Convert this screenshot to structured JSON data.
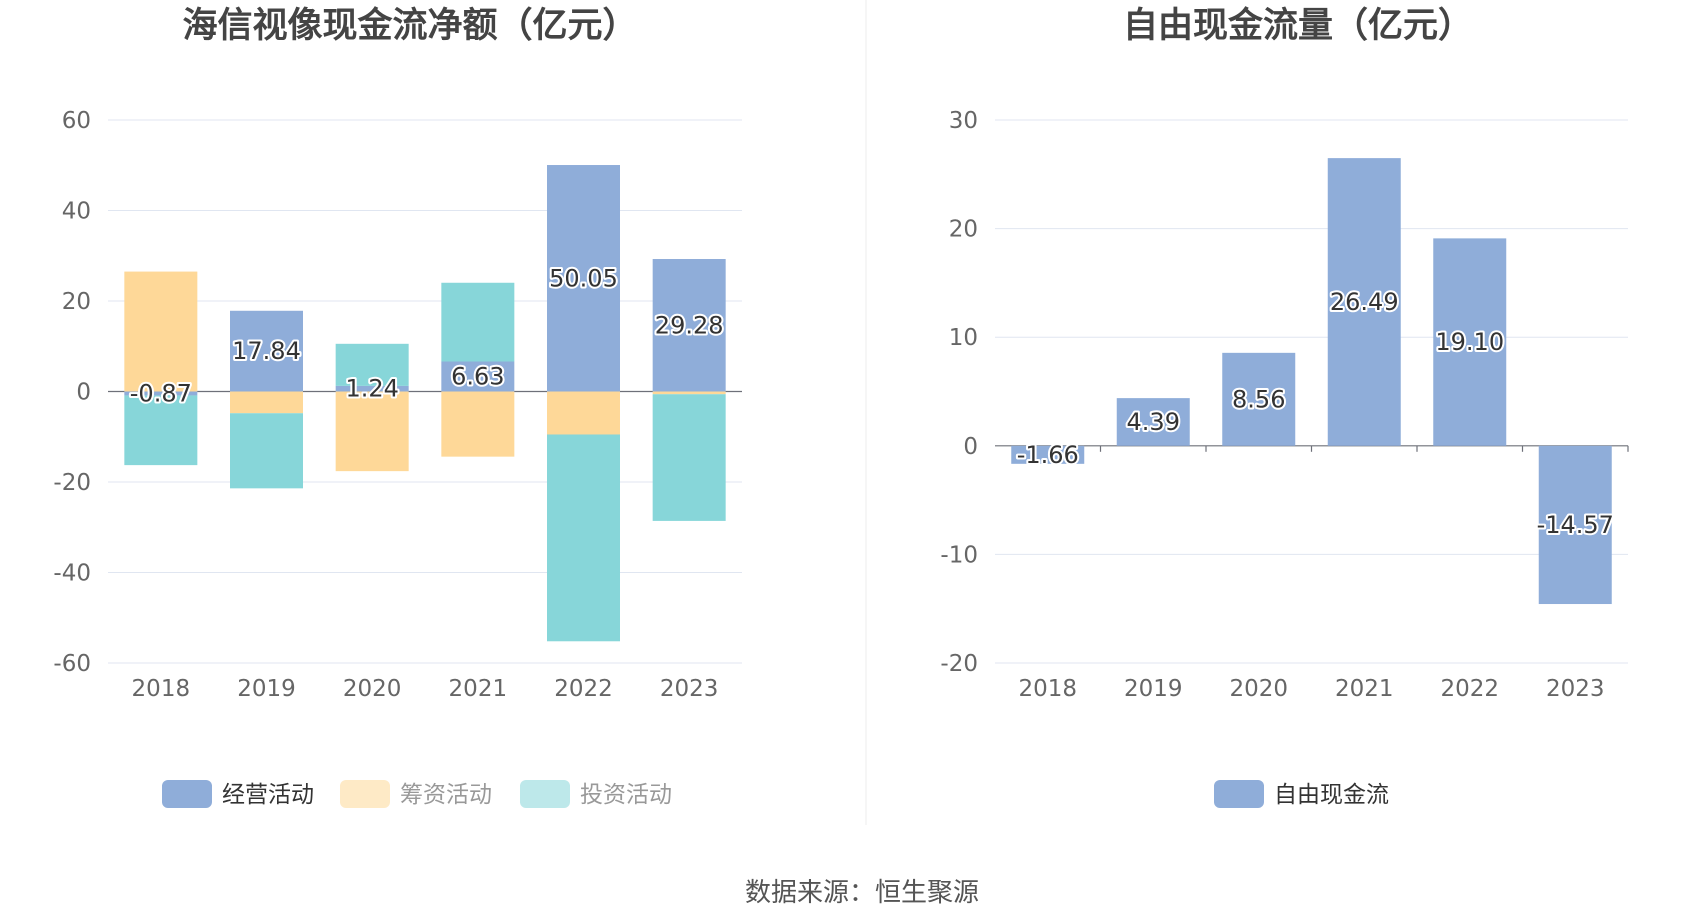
{
  "source_text": "数据来源：恒生聚源",
  "chart_data": [
    {
      "type": "bar",
      "stacked": true,
      "title": "海信视像现金流净额（亿元）",
      "categories": [
        "2018",
        "2019",
        "2020",
        "2021",
        "2022",
        "2023"
      ],
      "ylim": [
        -60,
        60
      ],
      "yticks": [
        "60",
        "40",
        "20",
        "0",
        "-20",
        "-40",
        "-60"
      ],
      "grid": true,
      "legend_position": "bottom",
      "series": [
        {
          "name": "经营活动",
          "color": "#8fadd9",
          "legend_state": "on",
          "values": [
            -0.87,
            17.84,
            1.24,
            6.63,
            50.05,
            29.28
          ],
          "labels": [
            "-0.87",
            "17.84",
            "1.24",
            "6.63",
            "50.05",
            "29.28"
          ]
        },
        {
          "name": "筹资活动",
          "color": "#fed898",
          "legend_state": "off",
          "values": [
            26.5,
            -4.8,
            -17.6,
            -14.4,
            -9.5,
            -0.6
          ]
        },
        {
          "name": "投资活动",
          "color": "#87d6d9",
          "legend_state": "off",
          "values": [
            -15.4,
            -16.6,
            9.3,
            17.4,
            -45.7,
            -28.0
          ]
        }
      ]
    },
    {
      "type": "bar",
      "title": "自由现金流量（亿元）",
      "categories": [
        "2018",
        "2019",
        "2020",
        "2021",
        "2022",
        "2023"
      ],
      "ylim": [
        -20,
        30
      ],
      "yticks": [
        "30",
        "20",
        "10",
        "0",
        "-10",
        "-20"
      ],
      "grid": true,
      "legend_position": "bottom",
      "series": [
        {
          "name": "自由现金流",
          "color": "#8fadd9",
          "legend_state": "on",
          "values": [
            -1.66,
            4.39,
            8.56,
            26.49,
            19.1,
            -14.57
          ],
          "labels": [
            "-1.66",
            "4.39",
            "8.56",
            "26.49",
            "19.10",
            "-14.57"
          ]
        }
      ]
    }
  ]
}
